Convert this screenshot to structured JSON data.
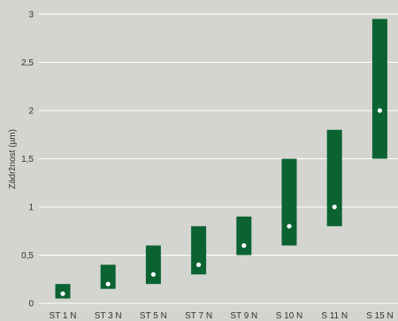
{
  "chart_data": {
    "type": "bar",
    "subtype": "range-with-marker",
    "title": "",
    "xlabel": "",
    "ylabel": "Zádržnost (µm)",
    "ylim": [
      0,
      3
    ],
    "yticks": [
      {
        "value": 0,
        "label": "0"
      },
      {
        "value": 0.5,
        "label": "0,5"
      },
      {
        "value": 1,
        "label": "1"
      },
      {
        "value": 1.5,
        "label": "1,5"
      },
      {
        "value": 2,
        "label": "2"
      },
      {
        "value": 2.5,
        "label": "2,5"
      },
      {
        "value": 3,
        "label": "3"
      }
    ],
    "grid": true,
    "legend": "none",
    "categories": [
      "ST 1 N",
      "ST 3 N",
      "ST 5 N",
      "ST 7 N",
      "ST 9 N",
      "S 10 N",
      "S 11 N",
      "S 15 N"
    ],
    "ranges": [
      {
        "low": 0.05,
        "high": 0.2,
        "mid": 0.1
      },
      {
        "low": 0.15,
        "high": 0.4,
        "mid": 0.2
      },
      {
        "low": 0.2,
        "high": 0.6,
        "mid": 0.3
      },
      {
        "low": 0.3,
        "high": 0.8,
        "mid": 0.4
      },
      {
        "low": 0.5,
        "high": 0.9,
        "mid": 0.6
      },
      {
        "low": 0.6,
        "high": 1.5,
        "mid": 0.8
      },
      {
        "low": 0.8,
        "high": 1.8,
        "mid": 1.0
      },
      {
        "low": 1.5,
        "high": 2.95,
        "mid": 2.0
      }
    ],
    "colors": {
      "background": "#d4d4d0",
      "bar": "#0b6331",
      "marker": "#ffffff",
      "grid": "#ffffff"
    }
  }
}
